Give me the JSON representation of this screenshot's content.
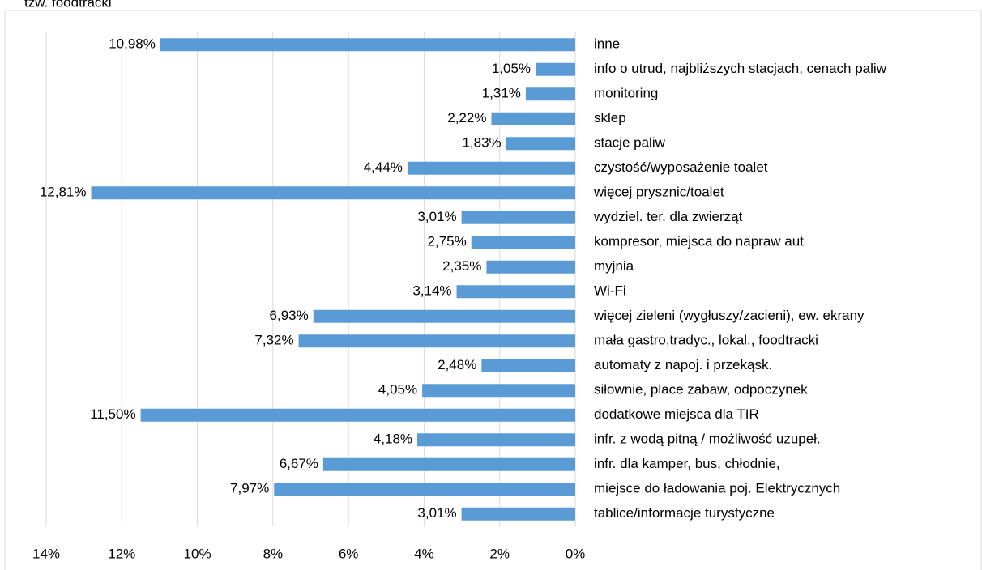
{
  "caption": "tzw. foodtracki",
  "chart_data": {
    "type": "hbar",
    "categories": [
      "inne",
      "info o utrud, najbliższych stacjach, cenach paliw",
      "monitoring",
      "sklep",
      "stacje paliw",
      "czystość/wyposażenie toalet",
      "więcej prysznic/toalet",
      "wydziel. ter. dla zwierząt",
      "kompresor, miejsca do napraw aut",
      "myjnia",
      "Wi-Fi",
      "więcej zieleni (wygłuszy/zacieni), ew. ekrany",
      "mała gastro,tradyc., lokal., foodtracki",
      "automaty z napoj. i przekąsk.",
      "siłownie, place zabaw, odpoczynek",
      "dodatkowe miejsca dla TIR",
      "infr. z wodą pitną / możliwość uzupeł.",
      "infr. dla kamper, bus, chłodnie,",
      "miejsce do ładowania poj. Elektrycznych",
      "tablice/informacje turystyczne"
    ],
    "values": [
      10.98,
      1.05,
      1.31,
      2.22,
      1.83,
      4.44,
      12.81,
      3.01,
      2.75,
      2.35,
      3.14,
      6.93,
      7.32,
      2.48,
      4.05,
      11.5,
      4.18,
      6.67,
      7.97,
      3.01
    ],
    "value_labels": [
      "10,98%",
      "1,05%",
      "1,31%",
      "2,22%",
      "1,83%",
      "4,44%",
      "12,81%",
      "3,01%",
      "2,75%",
      "2,35%",
      "3,14%",
      "6,93%",
      "7,32%",
      "2,48%",
      "4,05%",
      "11,50%",
      "4,18%",
      "6,67%",
      "7,97%",
      "3,01%"
    ],
    "color": "#5b9bd5",
    "xlim": [
      0,
      14
    ],
    "x_reversed": true,
    "xticks": [
      {
        "value": 14,
        "label": "14%"
      },
      {
        "value": 12,
        "label": "12%"
      },
      {
        "value": 10,
        "label": "10%"
      },
      {
        "value": 8,
        "label": "8%"
      },
      {
        "value": 6,
        "label": "6%"
      },
      {
        "value": 4,
        "label": "4%"
      },
      {
        "value": 2,
        "label": "2%"
      },
      {
        "value": 0,
        "label": "0%"
      }
    ],
    "grid": true
  }
}
